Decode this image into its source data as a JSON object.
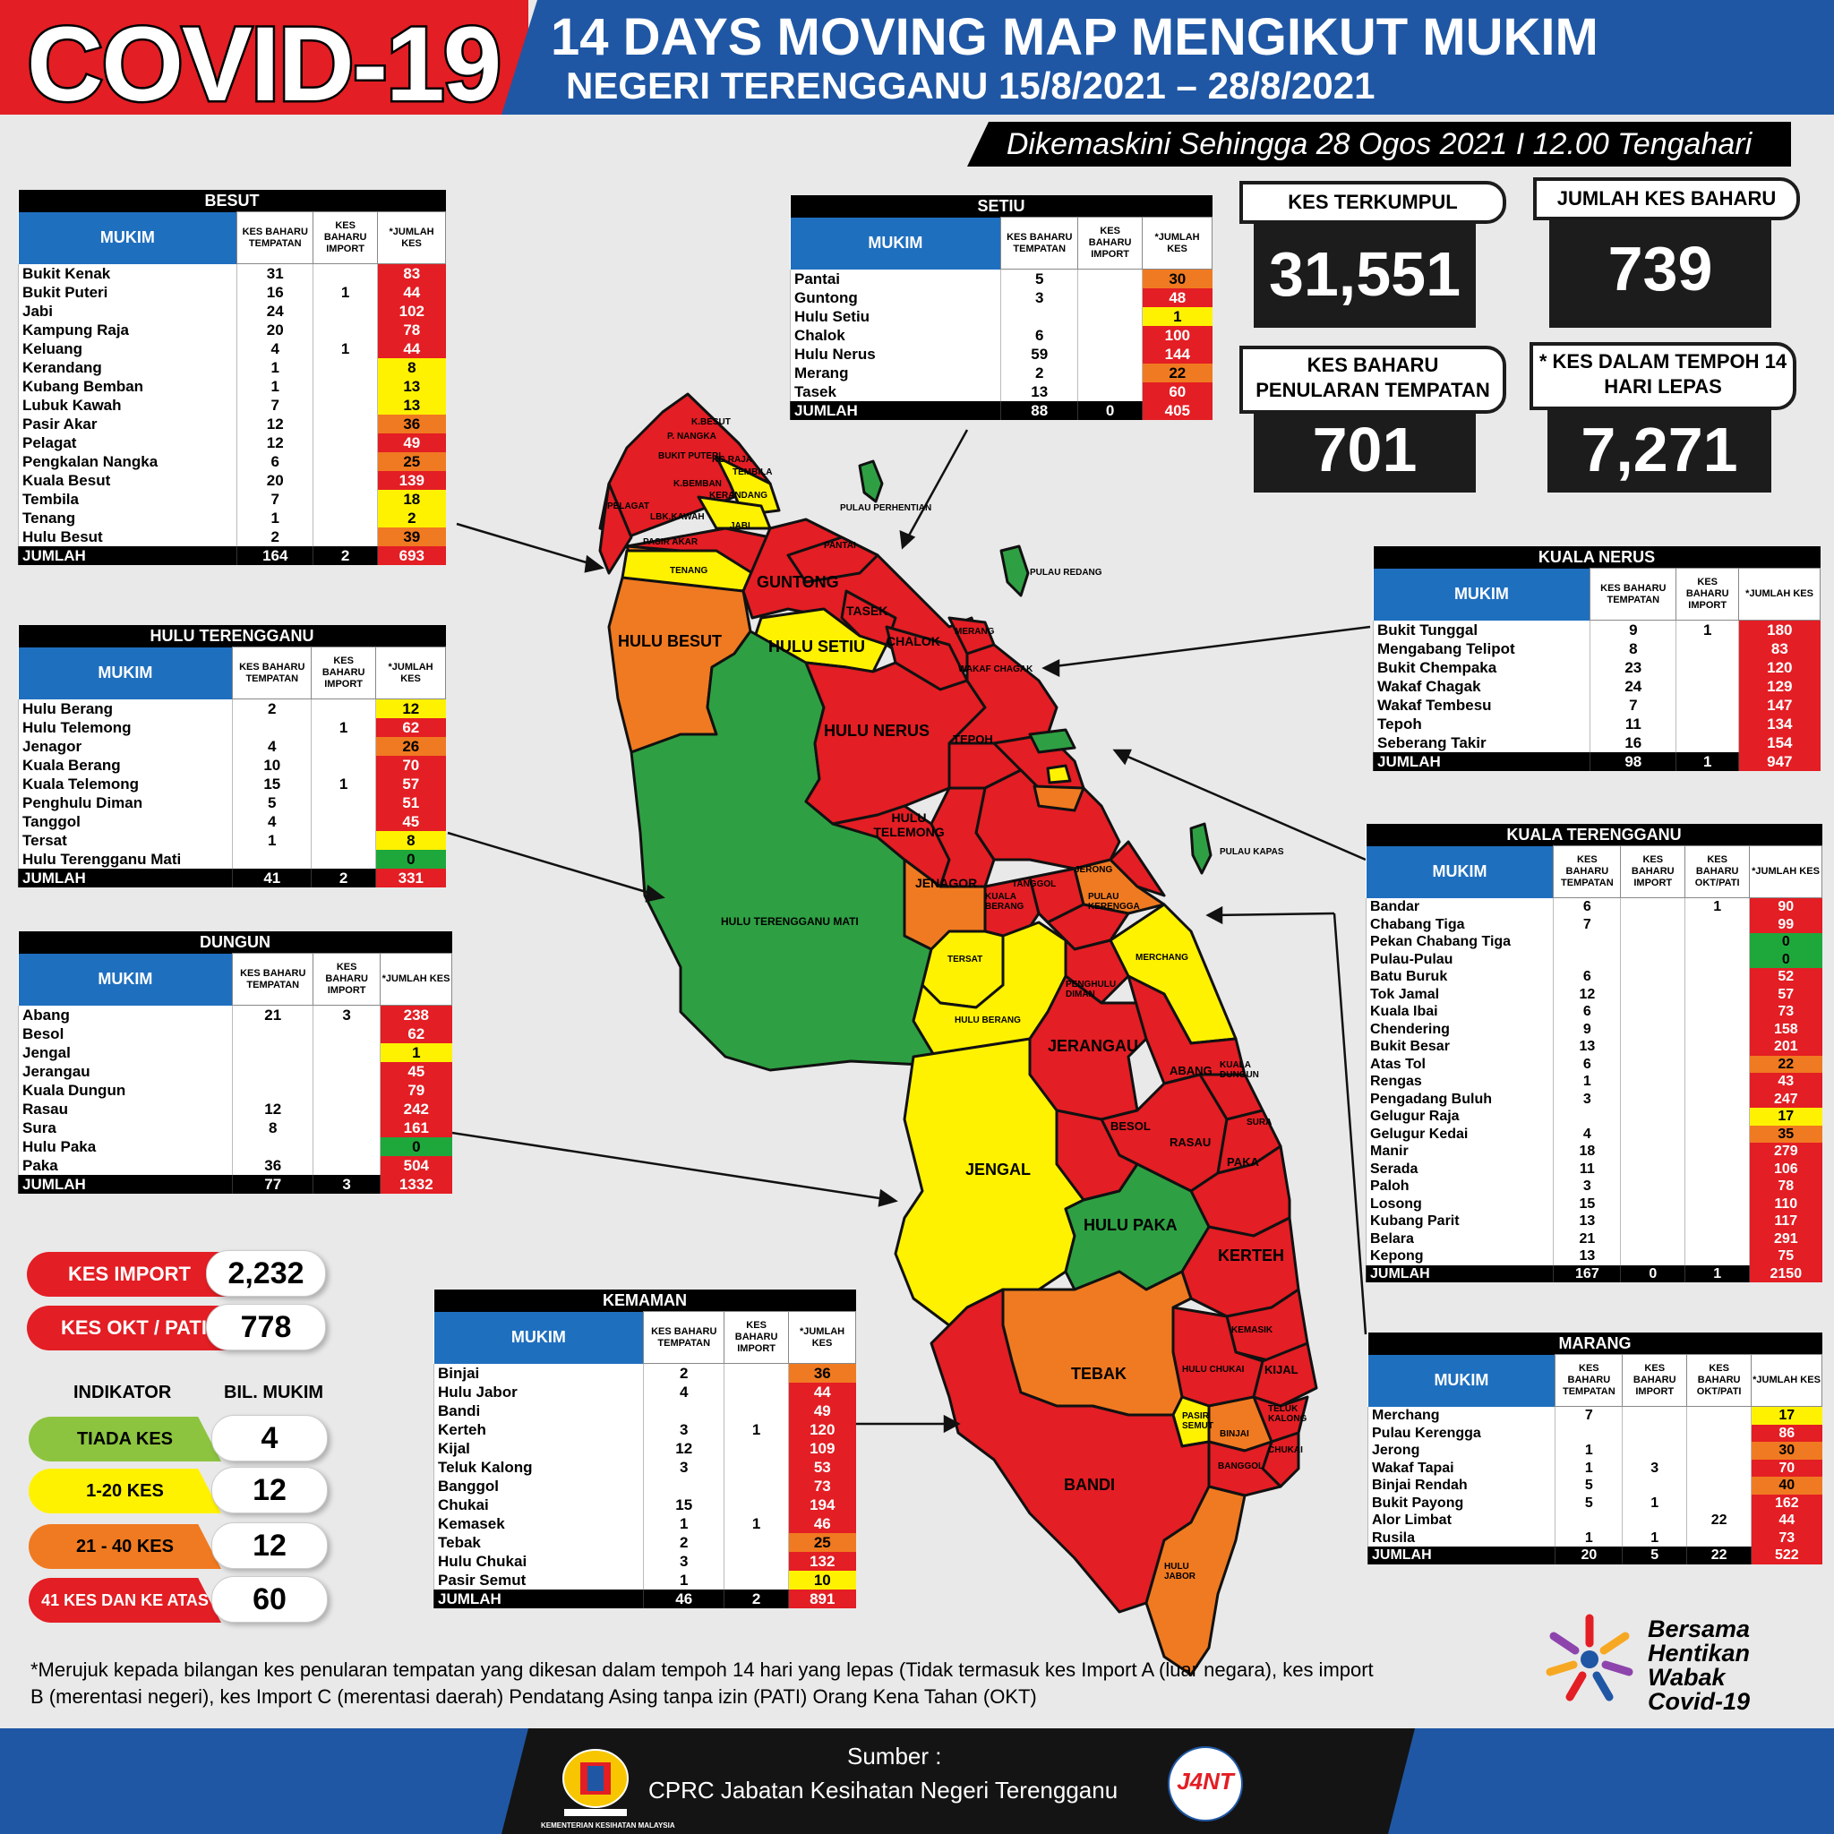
{
  "header": {
    "title": "COVID-19",
    "line1": "14 DAYS MOVING MAP MENGIKUT MUKIM",
    "line2": "NEGERI TERENGGANU 15/8/2021 – 28/8/2021",
    "updated": "Dikemaskini Sehingga 28 Ogos 2021 I 12.00 Tengahari"
  },
  "stats": {
    "kes_terkumpul": {
      "label": "KES TERKUMPUL",
      "value": "31,551"
    },
    "jumlah_kes_baharu": {
      "label": "JUMLAH KES BAHARU",
      "value": "739"
    },
    "kes_baharu_tempatan": {
      "label": "KES BAHARU PENULARAN TEMPATAN",
      "value": "701"
    },
    "kes_14_hari": {
      "label": "* KES DALAM TEMPOH 14 HARI LEPAS",
      "value": "7,271"
    }
  },
  "col_headers": {
    "mukim": "MUKIM",
    "tempatan": "KES BAHARU TEMPATAN",
    "import": "KES BAHARU IMPORT",
    "okt": "KES BAHARU OKT/PATI",
    "jumlah": "*JUMLAH KES"
  },
  "tables": {
    "besut": {
      "title": "BESUT",
      "rows": [
        [
          "Bukit Kenak",
          "31",
          "",
          "83",
          "red"
        ],
        [
          "Bukit Puteri",
          "16",
          "1",
          "44",
          "red"
        ],
        [
          "Jabi",
          "24",
          "",
          "102",
          "red"
        ],
        [
          "Kampung Raja",
          "20",
          "",
          "78",
          "red"
        ],
        [
          "Keluang",
          "4",
          "1",
          "44",
          "red"
        ],
        [
          "Kerandang",
          "1",
          "",
          "8",
          "yellow"
        ],
        [
          "Kubang Bemban",
          "1",
          "",
          "13",
          "yellow"
        ],
        [
          "Lubuk Kawah",
          "7",
          "",
          "13",
          "yellow"
        ],
        [
          "Pasir Akar",
          "12",
          "",
          "36",
          "orange"
        ],
        [
          "Pelagat",
          "12",
          "",
          "49",
          "red"
        ],
        [
          "Pengkalan Nangka",
          "6",
          "",
          "25",
          "orange"
        ],
        [
          "Kuala Besut",
          "20",
          "",
          "139",
          "red"
        ],
        [
          "Tembila",
          "7",
          "",
          "18",
          "yellow"
        ],
        [
          "Tenang",
          "1",
          "",
          "2",
          "yellow"
        ],
        [
          "Hulu Besut",
          "2",
          "",
          "39",
          "orange"
        ]
      ],
      "total": [
        "JUMLAH",
        "164",
        "2",
        "693"
      ]
    },
    "hulu_terengganu": {
      "title": "HULU TERENGGANU",
      "rows": [
        [
          "Hulu Berang",
          "2",
          "",
          "12",
          "yellow"
        ],
        [
          "Hulu Telemong",
          "",
          "1",
          "62",
          "red"
        ],
        [
          "Jenagor",
          "4",
          "",
          "26",
          "orange"
        ],
        [
          "Kuala Berang",
          "10",
          "",
          "70",
          "red"
        ],
        [
          "Kuala Telemong",
          "15",
          "1",
          "57",
          "red"
        ],
        [
          "Penghulu Diman",
          "5",
          "",
          "51",
          "red"
        ],
        [
          "Tanggol",
          "4",
          "",
          "45",
          "red"
        ],
        [
          "Tersat",
          "1",
          "",
          "8",
          "yellow"
        ],
        [
          "Hulu Terengganu Mati",
          "",
          "",
          "0",
          "green"
        ]
      ],
      "total": [
        "JUMLAH",
        "41",
        "2",
        "331"
      ]
    },
    "dungun": {
      "title": "DUNGUN",
      "rows": [
        [
          "Abang",
          "21",
          "3",
          "238",
          "red"
        ],
        [
          "Besol",
          "",
          "",
          "62",
          "red"
        ],
        [
          "Jengal",
          "",
          "",
          "1",
          "yellow"
        ],
        [
          "Jerangau",
          "",
          "",
          "45",
          "red"
        ],
        [
          "Kuala Dungun",
          "",
          "",
          "79",
          "red"
        ],
        [
          "Rasau",
          "12",
          "",
          "242",
          "red"
        ],
        [
          "Sura",
          "8",
          "",
          "161",
          "red"
        ],
        [
          "Hulu Paka",
          "",
          "",
          "0",
          "green"
        ],
        [
          "Paka",
          "36",
          "",
          "504",
          "red"
        ]
      ],
      "total": [
        "JUMLAH",
        "77",
        "3",
        "1332"
      ]
    },
    "setiu": {
      "title": "SETIU",
      "rows": [
        [
          "Pantai",
          "5",
          "",
          "30",
          "orange"
        ],
        [
          "Guntong",
          "3",
          "",
          "48",
          "red"
        ],
        [
          "Hulu Setiu",
          "",
          "",
          "1",
          "yellow"
        ],
        [
          "Chalok",
          "6",
          "",
          "100",
          "red"
        ],
        [
          "Hulu Nerus",
          "59",
          "",
          "144",
          "red"
        ],
        [
          "Merang",
          "2",
          "",
          "22",
          "orange"
        ],
        [
          "Tasek",
          "13",
          "",
          "60",
          "red"
        ]
      ],
      "total": [
        "JUMLAH",
        "88",
        "0",
        "405"
      ]
    },
    "kuala_nerus": {
      "title": "KUALA NERUS",
      "rows": [
        [
          "Bukit Tunggal",
          "9",
          "1",
          "180",
          "red"
        ],
        [
          "Mengabang Telipot",
          "8",
          "",
          "83",
          "red"
        ],
        [
          "Bukit Chempaka",
          "23",
          "",
          "120",
          "red"
        ],
        [
          "Wakaf Chagak",
          "24",
          "",
          "129",
          "red"
        ],
        [
          "Wakaf Tembesu",
          "7",
          "",
          "147",
          "red"
        ],
        [
          "Tepoh",
          "11",
          "",
          "134",
          "red"
        ],
        [
          "Seberang Takir",
          "16",
          "",
          "154",
          "red"
        ]
      ],
      "total": [
        "JUMLAH",
        "98",
        "1",
        "947"
      ]
    },
    "kuala_terengganu": {
      "title": "KUALA TERENGGANU",
      "rows": [
        [
          "Bandar",
          "6",
          "",
          "1",
          "90",
          "red"
        ],
        [
          "Chabang Tiga",
          "7",
          "",
          "",
          "99",
          "red"
        ],
        [
          "Pekan Chabang Tiga",
          "",
          "",
          "",
          "0",
          "green"
        ],
        [
          "Pulau-Pulau",
          "",
          "",
          "",
          "0",
          "green"
        ],
        [
          "Batu Buruk",
          "6",
          "",
          "",
          "52",
          "red"
        ],
        [
          "Tok Jamal",
          "12",
          "",
          "",
          "57",
          "red"
        ],
        [
          "Kuala Ibai",
          "6",
          "",
          "",
          "73",
          "red"
        ],
        [
          "Chendering",
          "9",
          "",
          "",
          "158",
          "red"
        ],
        [
          "Bukit Besar",
          "13",
          "",
          "",
          "201",
          "red"
        ],
        [
          "Atas Tol",
          "6",
          "",
          "",
          "22",
          "orange"
        ],
        [
          "Rengas",
          "1",
          "",
          "",
          "43",
          "red"
        ],
        [
          "Pengadang Buluh",
          "3",
          "",
          "",
          "247",
          "red"
        ],
        [
          "Gelugur Raja",
          "",
          "",
          "",
          "17",
          "yellow"
        ],
        [
          "Gelugur Kedai",
          "4",
          "",
          "",
          "35",
          "orange"
        ],
        [
          "Manir",
          "18",
          "",
          "",
          "279",
          "red"
        ],
        [
          "Serada",
          "11",
          "",
          "",
          "106",
          "red"
        ],
        [
          "Paloh",
          "3",
          "",
          "",
          "78",
          "red"
        ],
        [
          "Losong",
          "15",
          "",
          "",
          "110",
          "red"
        ],
        [
          "Kubang Parit",
          "13",
          "",
          "",
          "117",
          "red"
        ],
        [
          "Belara",
          "21",
          "",
          "",
          "291",
          "red"
        ],
        [
          "Kepong",
          "13",
          "",
          "",
          "75",
          "red"
        ]
      ],
      "total": [
        "JUMLAH",
        "167",
        "0",
        "1",
        "2150"
      ]
    },
    "marang": {
      "title": "MARANG",
      "rows": [
        [
          "Merchang",
          "7",
          "",
          "",
          "17",
          "yellow"
        ],
        [
          "Pulau Kerengga",
          "",
          "",
          "",
          "86",
          "red"
        ],
        [
          "Jerong",
          "1",
          "",
          "",
          "30",
          "orange"
        ],
        [
          "Wakaf Tapai",
          "1",
          "3",
          "",
          "70",
          "red"
        ],
        [
          "Binjai Rendah",
          "5",
          "",
          "",
          "40",
          "orange"
        ],
        [
          "Bukit Payong",
          "5",
          "1",
          "",
          "162",
          "red"
        ],
        [
          "Alor Limbat",
          "",
          "",
          "22",
          "44",
          "red"
        ],
        [
          "Rusila",
          "1",
          "1",
          "",
          "73",
          "red"
        ]
      ],
      "total": [
        "JUMLAH",
        "20",
        "5",
        "22",
        "522"
      ]
    },
    "kemaman": {
      "title": "KEMAMAN",
      "rows": [
        [
          "Binjai",
          "2",
          "",
          "36",
          "orange"
        ],
        [
          "Hulu Jabor",
          "4",
          "",
          "44",
          "red"
        ],
        [
          "Bandi",
          "",
          "",
          "49",
          "red"
        ],
        [
          "Kerteh",
          "3",
          "1",
          "120",
          "red"
        ],
        [
          "Kijal",
          "12",
          "",
          "109",
          "red"
        ],
        [
          "Teluk Kalong",
          "3",
          "",
          "53",
          "red"
        ],
        [
          "Banggol",
          "",
          "",
          "73",
          "red"
        ],
        [
          "Chukai",
          "15",
          "",
          "194",
          "red"
        ],
        [
          "Kemasek",
          "1",
          "1",
          "46",
          "red"
        ],
        [
          "Tebak",
          "2",
          "",
          "25",
          "orange"
        ],
        [
          "Hulu Chukai",
          "3",
          "",
          "132",
          "red"
        ],
        [
          "Pasir Semut",
          "1",
          "",
          "10",
          "yellow"
        ]
      ],
      "total": [
        "JUMLAH",
        "46",
        "2",
        "891"
      ]
    }
  },
  "legend": {
    "kes_import": {
      "label": "KES IMPORT",
      "value": "2,232"
    },
    "kes_okt": {
      "label": "KES OKT / PATI",
      "value": "778"
    },
    "indikator_title": "INDIKATOR",
    "bil_mukim_title": "BIL. MUKIM",
    "items": [
      {
        "label": "TIADA KES",
        "value": "4",
        "color": "#8cc43f"
      },
      {
        "label": "1-20 KES",
        "value": "12",
        "color": "#fff200"
      },
      {
        "label": "21 - 40 KES",
        "value": "12",
        "color": "#f07a21"
      },
      {
        "label": "41 KES DAN KE ATAS",
        "value": "60",
        "color": "#e31e24"
      }
    ]
  },
  "map": {
    "colors": {
      "green": "#2ea043",
      "yellow": "#fff200",
      "orange": "#f07a21",
      "red": "#e31e24"
    },
    "labels": {
      "k_besut": "K.BESUT",
      "p_nangka": "P. NANGKA",
      "kg_raja": "KG.RAJA",
      "bukit_puteri": "BUKIT PUTERI",
      "tembila": "TEMBILA",
      "k_bemban": "K.BEMBAN",
      "kerandang": "KERANDANG",
      "pelagat": "PELAGAT",
      "lbk_kawah": "LBK.KAWAH",
      "jabi": "JABI",
      "pasir_akar": "PASIR AKAR",
      "tenang": "TENANG",
      "pantai": "PANTAI",
      "guntong": "GUNTONG",
      "tasek": "TASEK",
      "chalok": "CHALOK",
      "merang": "MERANG",
      "hulu_besut": "HULU BESUT",
      "hulu_setiu": "HULU SETIU",
      "hulu_nerus": "HULU NERUS",
      "wakaf_chagak": "WAKAF CHAGAK",
      "tepoh": "TEPOH",
      "hulu_telemong": "HULU TELEMONG",
      "jenagor": "JENAGOR",
      "kuala_berang": "KUALA BERANG",
      "tanggol": "TANGGOL",
      "jerong": "JERONG",
      "pulau_kerengga": "PULAU KERENGGA",
      "tersat": "TERSAT",
      "penghulu_diman": "PENGHULU DIMAN",
      "merchang": "MERCHANG",
      "hulu_berang": "HULU BERANG",
      "hulu_terengganu_mati": "HULU TERENGGANU MATI",
      "jerangau": "JERANGAU",
      "abang": "ABANG",
      "kuala_dungun": "KUALA DUNGUN",
      "besol": "BESOL",
      "rasau": "RASAU",
      "sura": "SURA",
      "paka": "PAKA",
      "jengal": "JENGAL",
      "hulu_paka": "HULU PAKA",
      "kerteh": "KERTEH",
      "kemasik": "KEMASIK",
      "hulu_chukai": "HULU CHUKAI",
      "kijal": "KIJAL",
      "tebak": "TEBAK",
      "pasir_semut": "PASIR SEMUT",
      "teluk_kalong": "TELUK KALONG",
      "binjai": "BINJAI",
      "chukai": "CHUKAI",
      "banggol": "BANGGOL",
      "bandi": "BANDI",
      "hulu_jabor": "HULU JABOR",
      "pulau_perhentian": "PULAU PERHENTIAN",
      "pulau_redang": "PULAU REDANG",
      "pulau_kapas": "PULAU KAPAS"
    }
  },
  "footnote": "*Merujuk kepada bilangan kes penularan tempatan yang dikesan dalam tempoh 14 hari yang lepas (Tidak termasuk kes Import A (luar negara), kes import B (merentasi negeri), kes Import C (merentasi daerah) Pendatang Asing tanpa izin (PATI) Orang Kena Tahan (OKT)",
  "campaign": [
    "Bersama",
    "Hentikan",
    "Wabak",
    "Covid-19"
  ],
  "footer": {
    "source_label": "Sumber :",
    "source": "CPRC Jabatan Kesihatan Negeri  Terengganu",
    "kkm_label": "KEMENTERIAN KESIHATAN MALAYSIA",
    "jknt_label": "J4NT"
  }
}
